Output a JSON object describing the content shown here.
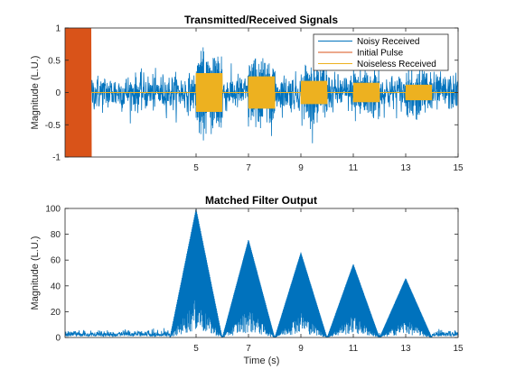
{
  "chart_data": [
    {
      "type": "line",
      "title": "Transmitted/Received Signals",
      "ylabel": "Magnitude (L.U.)",
      "xlabel": "",
      "xlim": [
        0,
        15
      ],
      "ylim": [
        -1,
        1
      ],
      "xticks": [
        5,
        7,
        9,
        11,
        13,
        15
      ],
      "yticks": [
        -1,
        -0.5,
        0,
        0.5,
        1
      ],
      "xtick_labels": [
        "5",
        "7",
        "9",
        "11",
        "13",
        15
      ],
      "ytick_labels": [
        "-1",
        "-0.5",
        "0",
        "0.5",
        "1"
      ],
      "legend_placement": "top-right",
      "series": [
        {
          "name": "Noisy Received",
          "color": "#0072BD",
          "noise_amplitude": 0.25,
          "x_range": [
            0,
            15
          ]
        },
        {
          "name": "Initial Pulse",
          "color": "#D95319",
          "pulse": {
            "x_start": 0,
            "x_end": 1,
            "amplitude": 1
          }
        },
        {
          "name": "Noiseless Received",
          "color": "#EDB120",
          "pulses": [
            {
              "x_start": 5,
              "x_end": 6,
              "amplitude": 0.3
            },
            {
              "x_start": 7,
              "x_end": 8,
              "amplitude": 0.25
            },
            {
              "x_start": 9,
              "x_end": 10,
              "amplitude": 0.18
            },
            {
              "x_start": 11,
              "x_end": 12,
              "amplitude": 0.15
            },
            {
              "x_start": 13,
              "x_end": 14,
              "amplitude": 0.12
            }
          ]
        }
      ]
    },
    {
      "type": "line",
      "title": "Matched Filter Output",
      "ylabel": "Magnitude (L.U.)",
      "xlabel": "Time (s)",
      "xlim": [
        0,
        15
      ],
      "ylim": [
        0,
        100
      ],
      "xticks": [
        5,
        7,
        9,
        11,
        13,
        15
      ],
      "yticks": [
        0,
        20,
        40,
        60,
        80,
        100
      ],
      "xtick_labels": [
        "5",
        "7",
        "9",
        "11",
        "13",
        "15"
      ],
      "ytick_labels": [
        "0",
        "20",
        "40",
        "60",
        "80",
        "100"
      ],
      "series": [
        {
          "color": "#0072BD",
          "baseline_noise": 4,
          "peaks": [
            {
              "center": 5,
              "height": 100,
              "half_width": 1
            },
            {
              "center": 7,
              "height": 76,
              "half_width": 1
            },
            {
              "center": 9,
              "height": 66,
              "half_width": 1
            },
            {
              "center": 11,
              "height": 57,
              "half_width": 1
            },
            {
              "center": 13,
              "height": 46,
              "half_width": 1
            }
          ]
        }
      ]
    }
  ]
}
